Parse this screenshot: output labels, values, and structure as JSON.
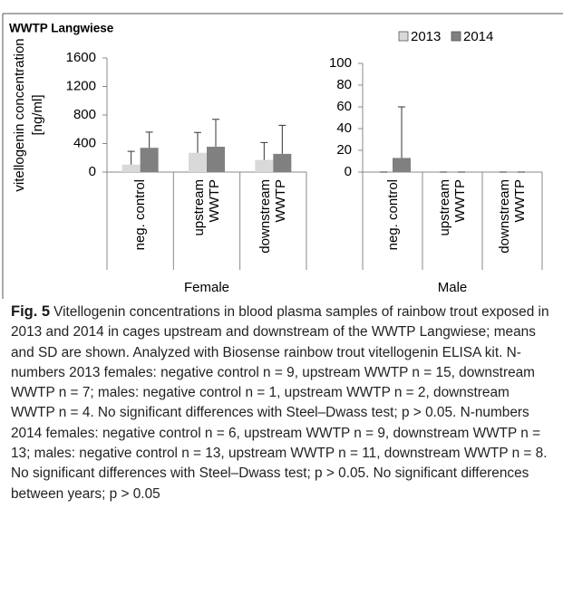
{
  "chart_data": [
    {
      "type": "bar",
      "title": "WWTP Langwiese",
      "ylabel": [
        "vitellogenin concentration",
        "[ng/ml]"
      ],
      "xlabel": "Female",
      "categories": [
        "neg. control",
        "upstream WWTP",
        "downstream WWTP"
      ],
      "series": [
        {
          "name": "2013",
          "color": "#d9d9d9",
          "values": [
            105,
            270,
            170
          ],
          "errors": [
            185,
            285,
            245
          ]
        },
        {
          "name": "2014",
          "color": "#808080",
          "values": [
            340,
            355,
            255
          ],
          "errors": [
            220,
            385,
            400
          ]
        }
      ],
      "ylim": [
        0,
        1600
      ],
      "yticks": [
        0,
        400,
        800,
        1200,
        1600
      ]
    },
    {
      "type": "bar",
      "xlabel": "Male",
      "categories": [
        "neg. control",
        "upstream WWTP",
        "downstream WWTP"
      ],
      "series": [
        {
          "color": "#d9d9d9",
          "values": [
            0,
            0,
            0
          ],
          "errors": [
            0,
            0,
            0
          ]
        },
        {
          "color": "#808080",
          "values": [
            13,
            0,
            0
          ],
          "errors": [
            47,
            0,
            0
          ]
        }
      ],
      "ylim": [
        0,
        100
      ],
      "yticks": [
        0,
        20,
        40,
        60,
        80,
        100
      ]
    }
  ],
  "caption": {
    "label": "Fig. 5",
    "text": "Vitellogenin concentrations in blood plasma samples of rainbow trout exposed in 2013 and 2014 in cages upstream and downstream of the WWTP Langwiese; means and SD are shown. Analyzed with Biosense rainbow trout vitellogenin ELISA kit. N-numbers 2013 females: negative control n = 9, upstream WWTP n = 15, downstream WWTP n = 7; males: negative control n = 1, upstream WWTP n = 2, downstream WWTP n = 4. No significant differences with Steel–Dwass test; p > 0.05. N-numbers 2014 females: negative control n = 6, upstream WWTP n = 9, downstream WWTP n = 13; males: negative control n = 13, upstream WWTP n = 11, downstream WWTP n = 8. No significant differences with Steel–Dwass test; p > 0.05. No significant differences between years; p > 0.05"
  }
}
